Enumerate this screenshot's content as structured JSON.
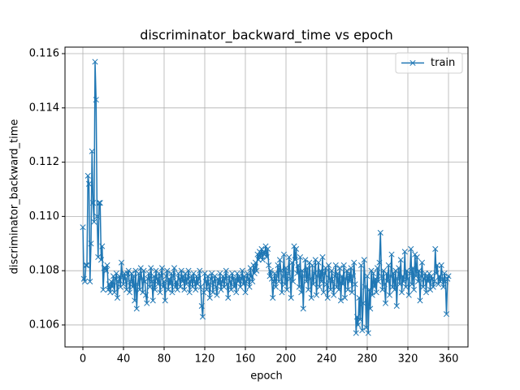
{
  "chart_data": {
    "type": "line",
    "title": "discriminator_backward_time vs epoch",
    "xlabel": "epoch",
    "ylabel": "discriminator_backward_time",
    "xlim": [
      -17.6,
      379.2
    ],
    "ylim": [
      0.10519,
      0.11624
    ],
    "xticks": [
      0,
      40,
      80,
      120,
      160,
      200,
      240,
      280,
      320,
      360
    ],
    "yticks": [
      0.106,
      0.108,
      {
        "value": 0.11,
        "label": "0.110"
      },
      0.112,
      0.114,
      0.116
    ],
    "grid": true,
    "legend": "upper right",
    "x": [
      0,
      1,
      2,
      3,
      4,
      5,
      6,
      7,
      8,
      9,
      10,
      11,
      12,
      13,
      14,
      15,
      16,
      17,
      18,
      19,
      20,
      21,
      22,
      23,
      24,
      25,
      26,
      27,
      28,
      29,
      30,
      31,
      32,
      33,
      34,
      35,
      36,
      37,
      38,
      39,
      40,
      41,
      42,
      43,
      44,
      45,
      46,
      47,
      48,
      49,
      50,
      51,
      52,
      53,
      54,
      55,
      56,
      57,
      58,
      59,
      60,
      61,
      62,
      63,
      64,
      65,
      66,
      67,
      68,
      69,
      70,
      71,
      72,
      73,
      74,
      75,
      76,
      77,
      78,
      79,
      80,
      81,
      82,
      83,
      84,
      85,
      86,
      87,
      88,
      89,
      90,
      91,
      92,
      93,
      94,
      95,
      96,
      97,
      98,
      99,
      100,
      101,
      102,
      103,
      104,
      105,
      106,
      107,
      108,
      109,
      110,
      111,
      112,
      113,
      114,
      115,
      116,
      117,
      118,
      119,
      120,
      121,
      122,
      123,
      124,
      125,
      126,
      127,
      128,
      129,
      130,
      131,
      132,
      133,
      134,
      135,
      136,
      137,
      138,
      139,
      140,
      141,
      142,
      143,
      144,
      145,
      146,
      147,
      148,
      149,
      150,
      151,
      152,
      153,
      154,
      155,
      156,
      157,
      158,
      159,
      160,
      161,
      162,
      163,
      164,
      165,
      166,
      167,
      168,
      169,
      170,
      171,
      172,
      173,
      174,
      175,
      176,
      177,
      178,
      179,
      180,
      181,
      182,
      183,
      184,
      185,
      186,
      187,
      188,
      189,
      190,
      191,
      192,
      193,
      194,
      195,
      196,
      197,
      198,
      199,
      200,
      201,
      202,
      203,
      204,
      205,
      206,
      207,
      208,
      209,
      210,
      211,
      212,
      213,
      214,
      215,
      216,
      217,
      218,
      219,
      220,
      221,
      222,
      223,
      224,
      225,
      226,
      227,
      228,
      229,
      230,
      231,
      232,
      233,
      234,
      235,
      236,
      237,
      238,
      239,
      240,
      241,
      242,
      243,
      244,
      245,
      246,
      247,
      248,
      249,
      250,
      251,
      252,
      253,
      254,
      255,
      256,
      257,
      258,
      259,
      260,
      261,
      262,
      263,
      264,
      265,
      266,
      267,
      268,
      269,
      270,
      271,
      272,
      273,
      274,
      275,
      276,
      277,
      278,
      279,
      280,
      281,
      282,
      283,
      284,
      285,
      286,
      287,
      288,
      289,
      290,
      291,
      292,
      293,
      294,
      295,
      296,
      297,
      298,
      299,
      300,
      301,
      302,
      303,
      304,
      305,
      306,
      307,
      308,
      309,
      310,
      311,
      312,
      313,
      314,
      315,
      316,
      317,
      318,
      319,
      320,
      321,
      322,
      323,
      324,
      325,
      326,
      327,
      328,
      329,
      330,
      331,
      332,
      333,
      334,
      335,
      336,
      337,
      338,
      339,
      340,
      341,
      342,
      343,
      344,
      345,
      346,
      347,
      348,
      349,
      350,
      351,
      352,
      353,
      354,
      355,
      356,
      357,
      358,
      359,
      360
    ],
    "series": [
      {
        "name": "train",
        "color": "#1f77b4",
        "values": [
          0.1096,
          0.1077,
          0.1076,
          0.1082,
          0.1082,
          0.1115,
          0.1112,
          0.1076,
          0.109,
          0.1124,
          0.1105,
          0.1098,
          0.1157,
          0.1143,
          0.11,
          0.1085,
          0.1105,
          0.1105,
          0.1084,
          0.1089,
          0.1073,
          0.1081,
          0.1081,
          0.108,
          0.1082,
          0.1073,
          0.1075,
          0.1072,
          0.1076,
          0.1074,
          0.1078,
          0.1072,
          0.1077,
          0.1079,
          0.107,
          0.1076,
          0.1078,
          0.1074,
          0.1083,
          0.1078,
          0.1075,
          0.1079,
          0.1077,
          0.1073,
          0.1079,
          0.108,
          0.1072,
          0.1076,
          0.1079,
          0.1074,
          0.1078,
          0.1069,
          0.108,
          0.1066,
          0.1075,
          0.1079,
          0.1073,
          0.1081,
          0.1077,
          0.1072,
          0.108,
          0.1076,
          0.1071,
          0.1068,
          0.1077,
          0.1079,
          0.1074,
          0.1081,
          0.1076,
          0.1069,
          0.1078,
          0.1073,
          0.108,
          0.1077,
          0.1075,
          0.1079,
          0.1072,
          0.1078,
          0.1081,
          0.1074,
          0.1076,
          0.1069,
          0.1078,
          0.108,
          0.1073,
          0.1077,
          0.1075,
          0.1079,
          0.1072,
          0.1078,
          0.1081,
          0.1074,
          0.1076,
          0.1073,
          0.1079,
          0.1077,
          0.1074,
          0.108,
          0.1076,
          0.1078,
          0.1073,
          0.1079,
          0.1075,
          0.1077,
          0.108,
          0.1072,
          0.1076,
          0.1078,
          0.1074,
          0.1079,
          0.1076,
          0.1073,
          0.1078,
          0.1075,
          0.1077,
          0.108,
          0.1074,
          0.1067,
          0.1063,
          0.1072,
          0.1079,
          0.1076,
          0.1073,
          0.1078,
          0.1075,
          0.107,
          0.1077,
          0.1079,
          0.1072,
          0.1076,
          0.1078,
          0.1074,
          0.1071,
          0.1077,
          0.1075,
          0.1079,
          0.1073,
          0.1076,
          0.1078,
          0.1074,
          0.1077,
          0.108,
          0.1075,
          0.107,
          0.1078,
          0.1076,
          0.1073,
          0.1079,
          0.1077,
          0.1074,
          0.1077,
          0.1072,
          0.1079,
          0.1076,
          0.1078,
          0.1074,
          0.1077,
          0.108,
          0.1075,
          0.1078,
          0.1072,
          0.1076,
          0.1079,
          0.1077,
          0.1074,
          0.1081,
          0.1078,
          0.1076,
          0.1082,
          0.1079,
          0.1083,
          0.108,
          0.1086,
          0.1084,
          0.1087,
          0.1085,
          0.1088,
          0.1084,
          0.1087,
          0.1086,
          0.1089,
          0.1085,
          0.1088,
          0.1082,
          0.1078,
          0.108,
          0.1077,
          0.107,
          0.1076,
          0.1079,
          0.1074,
          0.1078,
          0.1082,
          0.1076,
          0.1084,
          0.108,
          0.1072,
          0.1078,
          0.1086,
          0.1075,
          0.1081,
          0.1073,
          0.1079,
          0.1085,
          0.1077,
          0.107,
          0.1083,
          0.1076,
          0.1089,
          0.1084,
          0.1088,
          0.1079,
          0.1082,
          0.1074,
          0.1085,
          0.1072,
          0.108,
          0.1066,
          0.1078,
          0.1084,
          0.1076,
          0.1081,
          0.1073,
          0.1083,
          0.1077,
          0.107,
          0.1082,
          0.1075,
          0.1079,
          0.1084,
          0.1071,
          0.1078,
          0.1083,
          0.1074,
          0.108,
          0.1076,
          0.1085,
          0.1072,
          0.1079,
          0.1081,
          0.1075,
          0.107,
          0.1082,
          0.1077,
          0.1073,
          0.108,
          0.1076,
          0.1071,
          0.1078,
          0.1082,
          0.1074,
          0.1079,
          0.1073,
          0.1081,
          0.1069,
          0.1078,
          0.1075,
          0.1082,
          0.107,
          0.1077,
          0.108,
          0.1073,
          0.1079,
          0.1076,
          0.1081,
          0.1072,
          0.1078,
          0.1083,
          0.1075,
          0.1057,
          0.1063,
          0.106,
          0.107,
          0.1062,
          0.1082,
          0.1058,
          0.1068,
          0.1084,
          0.1074,
          0.1059,
          0.1078,
          0.1057,
          0.1073,
          0.1066,
          0.108,
          0.1071,
          0.1079,
          0.1074,
          0.1077,
          0.1072,
          0.1081,
          0.1076,
          0.1083,
          0.1094,
          0.1078,
          0.1073,
          0.108,
          0.1075,
          0.1068,
          0.1079,
          0.1076,
          0.1082,
          0.1071,
          0.1078,
          0.1086,
          0.1074,
          0.1079,
          0.1073,
          0.108,
          0.1067,
          0.1077,
          0.1081,
          0.1075,
          0.1084,
          0.1072,
          0.1078,
          0.1076,
          0.1087,
          0.1074,
          0.108,
          0.1077,
          0.1071,
          0.1079,
          0.1088,
          0.1075,
          0.1081,
          0.1073,
          0.1086,
          0.1078,
          0.1085,
          0.1076,
          0.108,
          0.1069,
          0.1078,
          0.1083,
          0.1074,
          0.1077,
          0.1079,
          0.1072,
          0.1078,
          0.1076,
          0.1079,
          0.1073,
          0.1078,
          0.1077,
          0.1074,
          0.1076,
          0.1088,
          0.1079,
          0.1082,
          0.1075,
          0.1078,
          0.1076,
          0.1082,
          0.1077,
          0.1074,
          0.1079,
          0.1076,
          0.1064,
          0.1077,
          0.1078
        ]
      }
    ]
  }
}
